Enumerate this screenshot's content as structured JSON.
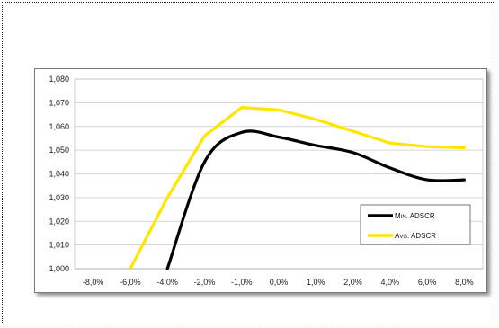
{
  "chart_data": {
    "type": "line",
    "x": [
      "-8,0%",
      "-6,0%",
      "-4,0%",
      "-2,0%",
      "-1,0%",
      "0,0%",
      "1,0%",
      "2,0%",
      "4,0%",
      "6,0%",
      "8,0%"
    ],
    "y_ticks": [
      "1,000",
      "1,010",
      "1,020",
      "1,030",
      "1,040",
      "1,050",
      "1,060",
      "1,070",
      "1,080"
    ],
    "ylim": [
      1.0,
      1.08
    ],
    "grid": true,
    "legend_position": "bottom-right",
    "series": [
      {
        "name": "Min. ADSCR",
        "color": "#000000",
        "values": [
          null,
          null,
          1.0,
          1.045,
          1.0575,
          1.0555,
          1.052,
          1.049,
          1.0425,
          1.0375,
          1.0375
        ]
      },
      {
        "name": "Avg. ADSCR",
        "color": "#FFE600",
        "values": [
          null,
          1.0,
          1.03,
          1.056,
          1.068,
          1.067,
          1.063,
          1.058,
          1.053,
          1.0515,
          1.051
        ]
      }
    ]
  }
}
